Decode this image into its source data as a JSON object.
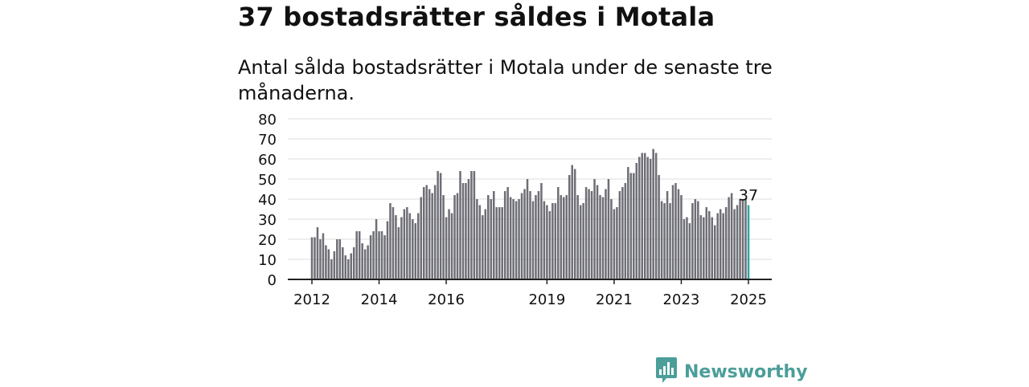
{
  "title": "37 bostadsrätter såldes i Motala",
  "subtitle": "Antal sålda bostadsrätter i Motala under de senaste tre månaderna.",
  "brand": {
    "name": "Newsworthy",
    "icon": "newsworthy-logo-icon",
    "color": "#4b9e9a"
  },
  "chart_data": {
    "type": "bar",
    "title": "37 bostadsrätter såldes i Motala",
    "subtitle": "Antal sålda bostadsrätter i Motala under de senaste tre månaderna.",
    "xlabel": "",
    "ylabel": "",
    "ylim": [
      0,
      80
    ],
    "yticks": [
      0,
      10,
      20,
      30,
      40,
      50,
      60,
      70,
      80
    ],
    "x_start": "2012-01",
    "x_interval": "month",
    "xticks": [
      {
        "label": "2012",
        "x": "2012-01"
      },
      {
        "label": "2014",
        "x": "2014-01"
      },
      {
        "label": "2016",
        "x": "2016-01"
      },
      {
        "label": "2019",
        "x": "2019-01"
      },
      {
        "label": "2021",
        "x": "2021-01"
      },
      {
        "label": "2023",
        "x": "2023-01"
      },
      {
        "label": "2025",
        "x": "2025-01"
      }
    ],
    "values": [
      21,
      21,
      26,
      20,
      23,
      17,
      15,
      10,
      14,
      20,
      20,
      16,
      12,
      10,
      13,
      16,
      24,
      24,
      18,
      15,
      17,
      22,
      24,
      30,
      24,
      24,
      22,
      29,
      38,
      36,
      32,
      26,
      31,
      35,
      36,
      33,
      30,
      28,
      33,
      41,
      46,
      47,
      45,
      43,
      47,
      54,
      53,
      42,
      31,
      35,
      33,
      42,
      43,
      54,
      48,
      48,
      50,
      54,
      54,
      40,
      37,
      32,
      35,
      42,
      40,
      44,
      36,
      36,
      36,
      44,
      46,
      41,
      40,
      39,
      40,
      43,
      45,
      50,
      44,
      39,
      42,
      44,
      48,
      39,
      37,
      34,
      38,
      38,
      46,
      42,
      41,
      42,
      52,
      57,
      55,
      42,
      37,
      38,
      46,
      45,
      44,
      50,
      47,
      42,
      41,
      45,
      50,
      40,
      35,
      36,
      44,
      46,
      48,
      56,
      53,
      53,
      58,
      61,
      63,
      63,
      61,
      60,
      65,
      63,
      52,
      39,
      38,
      44,
      38,
      47,
      48,
      45,
      42,
      30,
      31,
      28,
      38,
      40,
      39,
      32,
      31,
      36,
      34,
      31,
      27,
      33,
      35,
      33,
      36,
      41,
      43,
      35,
      37,
      40,
      40,
      40,
      37
    ],
    "highlight": {
      "index": 156,
      "value": 37,
      "label": "37",
      "color": "#2aa6a6"
    },
    "bar_color": "#6e6e76",
    "grid": true,
    "legend": "none"
  }
}
